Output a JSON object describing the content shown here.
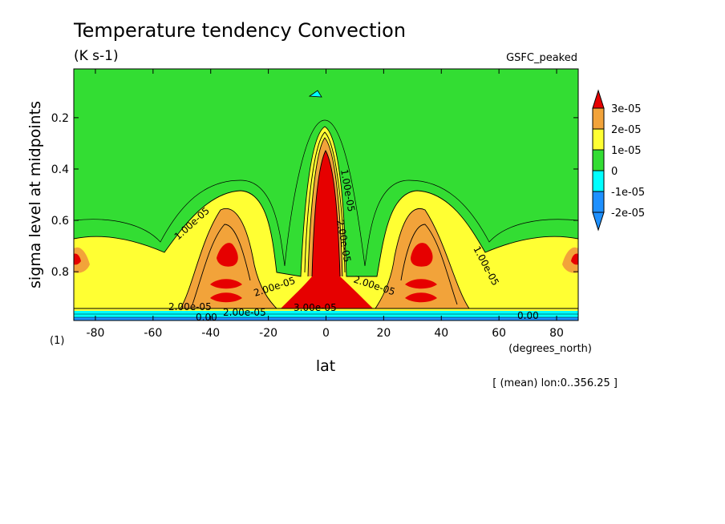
{
  "chart_data": {
    "type": "contour",
    "title": "Temperature tendency Convection",
    "units": "(K s-1)",
    "experiment": "GSFC_peaked",
    "xlabel": "lat",
    "xunits": "(degrees_north)",
    "ylabel": "sigma level at midpoints",
    "yunits": "(1)",
    "annotation": "[ (mean) lon:0..356.25 ]",
    "xlim": [
      -87.5,
      87.5
    ],
    "ylim": [
      0.01,
      0.99
    ],
    "y_inverted": true,
    "x_ticks": [
      "-80",
      "-60",
      "-40",
      "-20",
      "0",
      "20",
      "40",
      "60",
      "80"
    ],
    "y_ticks": [
      "0.2",
      "0.4",
      "0.6",
      "0.8"
    ],
    "colorbar": {
      "levels": [
        "3e-05",
        "2e-05",
        "1e-05",
        "0",
        "-1e-05",
        "-2e-05"
      ],
      "colors": [
        "#e60000",
        "#f2a33a",
        "#ffff33",
        "#33dd33",
        "#00ffff",
        "#1e90ff"
      ]
    },
    "contour_labels": [
      "1.00e-05",
      "1.00e-05",
      "1.00e-05",
      "2.00e-05",
      "2.00e-05",
      "2.00e-05",
      "2.00e-05",
      "3.00e-05",
      "0.00",
      "0.00",
      "2.00e-05"
    ]
  }
}
